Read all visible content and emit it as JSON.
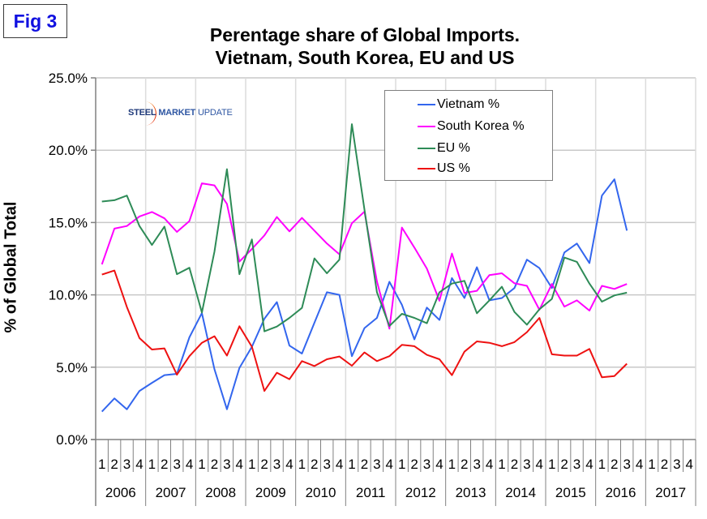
{
  "figure_label": "Fig 3",
  "logo": {
    "bold": "STEEL",
    "mid": "MARKET",
    "light": "UPDATE"
  },
  "chart_data": {
    "type": "line",
    "title": "Perentage share of Global Imports.",
    "subtitle": "Vietnam, South Korea, EU and US",
    "xlabel": "",
    "ylabel": "% of Global Total",
    "ylim": [
      0,
      25
    ],
    "yticks": [
      "0.0%",
      "5.0%",
      "10.0%",
      "15.0%",
      "20.0%",
      "25.0%"
    ],
    "ytick_values": [
      0,
      5,
      10,
      15,
      20,
      25
    ],
    "years": [
      "2006",
      "2007",
      "2008",
      "2009",
      "2010",
      "2011",
      "2012",
      "2013",
      "2014",
      "2015",
      "2016",
      "2017"
    ],
    "quarters": [
      "1",
      "2",
      "3",
      "4"
    ],
    "grid": true,
    "legend_position": "top-right",
    "series": [
      {
        "name": "Vietnam %",
        "color": "#3366ee",
        "values": [
          1.93,
          2.84,
          2.09,
          3.36,
          3.92,
          4.45,
          4.54,
          7.06,
          8.74,
          4.86,
          2.09,
          4.95,
          6.41,
          8.35,
          9.5,
          6.49,
          5.94,
          8.07,
          10.18,
          10.0,
          5.76,
          7.7,
          8.41,
          10.9,
          9.31,
          6.92,
          9.12,
          8.26,
          11.16,
          9.78,
          11.91,
          9.62,
          9.78,
          10.47,
          12.43,
          11.85,
          10.47,
          12.93,
          13.55,
          12.2,
          16.86,
          17.99,
          14.44
        ]
      },
      {
        "name": "South Korea %",
        "color": "#ff00ff",
        "values": [
          12.11,
          14.58,
          14.76,
          15.42,
          15.73,
          15.29,
          14.35,
          15.1,
          17.71,
          17.57,
          16.29,
          12.3,
          13.17,
          14.11,
          15.38,
          14.39,
          15.32,
          14.44,
          13.55,
          12.8,
          14.95,
          15.75,
          10.93,
          7.66,
          14.65,
          13.27,
          11.81,
          9.59,
          12.86,
          10.13,
          10.28,
          11.36,
          11.49,
          10.8,
          10.62,
          8.97,
          10.75,
          9.19,
          9.62,
          8.91,
          10.62,
          10.41,
          10.75
        ]
      },
      {
        "name": "EU %",
        "color": "#2e8b57",
        "values": [
          16.45,
          16.54,
          16.86,
          14.76,
          13.45,
          14.72,
          11.43,
          11.87,
          8.78,
          12.99,
          18.69,
          11.43,
          13.83,
          7.48,
          7.81,
          8.41,
          9.1,
          12.52,
          11.49,
          12.43,
          21.8,
          15.9,
          10.18,
          7.85,
          8.69,
          8.41,
          8.04,
          10.18,
          10.78,
          10.97,
          8.73,
          9.62,
          10.56,
          8.82,
          7.94,
          9.0,
          9.72,
          12.58,
          12.28,
          10.78,
          9.53,
          9.96,
          10.15
        ]
      },
      {
        "name": "US %",
        "color": "#ee1111",
        "values": [
          11.4,
          11.68,
          9.16,
          7.01,
          6.22,
          6.3,
          4.48,
          5.76,
          6.69,
          7.14,
          5.8,
          7.83,
          6.41,
          3.36,
          4.62,
          4.17,
          5.42,
          5.08,
          5.55,
          5.74,
          5.1,
          6.02,
          5.42,
          5.76,
          6.54,
          6.45,
          5.85,
          5.55,
          4.45,
          6.07,
          6.78,
          6.69,
          6.45,
          6.73,
          7.42,
          8.41,
          5.89,
          5.8,
          5.8,
          6.26,
          4.3,
          4.39,
          5.24
        ]
      }
    ]
  }
}
